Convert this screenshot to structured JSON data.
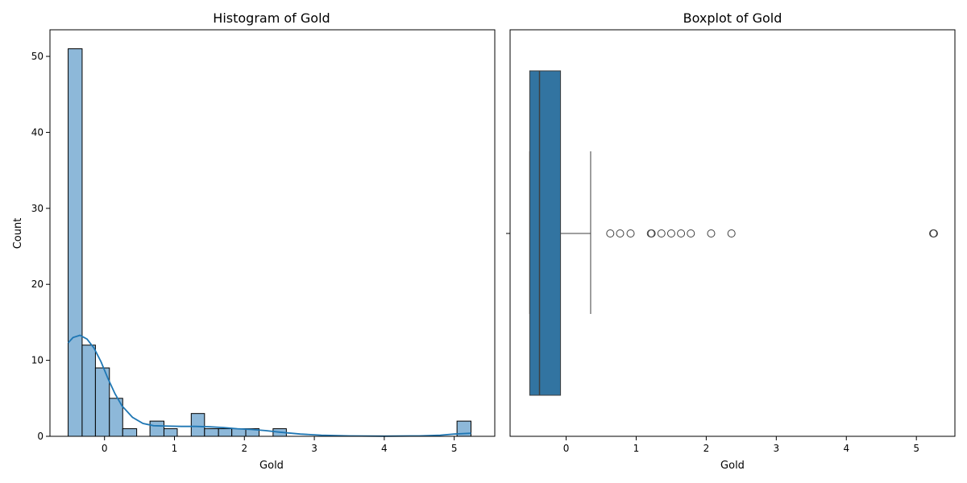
{
  "chart_data": [
    {
      "type": "bar",
      "title": "Histogram of Gold",
      "xlabel": "Gold",
      "ylabel": "Count",
      "xlim": [
        -0.78,
        5.58
      ],
      "ylim": [
        0,
        53.5
      ],
      "xticks": [
        0,
        1,
        2,
        3,
        4,
        5
      ],
      "yticks": [
        0,
        10,
        20,
        30,
        40,
        50
      ],
      "bar_color": "#8db8d9",
      "bar_edge": "#000000",
      "bins": [
        {
          "x0": -0.52,
          "x1": -0.32,
          "count": 51
        },
        {
          "x0": -0.32,
          "x1": -0.13,
          "count": 12
        },
        {
          "x0": -0.13,
          "x1": 0.07,
          "count": 9
        },
        {
          "x0": 0.07,
          "x1": 0.26,
          "count": 5
        },
        {
          "x0": 0.26,
          "x1": 0.46,
          "count": 1
        },
        {
          "x0": 0.46,
          "x1": 0.65,
          "count": 0
        },
        {
          "x0": 0.65,
          "x1": 0.85,
          "count": 2
        },
        {
          "x0": 0.85,
          "x1": 1.04,
          "count": 1
        },
        {
          "x0": 1.04,
          "x1": 1.24,
          "count": 0
        },
        {
          "x0": 1.24,
          "x1": 1.43,
          "count": 3
        },
        {
          "x0": 1.43,
          "x1": 1.63,
          "count": 1
        },
        {
          "x0": 1.63,
          "x1": 1.82,
          "count": 1
        },
        {
          "x0": 1.82,
          "x1": 2.02,
          "count": 1
        },
        {
          "x0": 2.02,
          "x1": 2.21,
          "count": 1
        },
        {
          "x0": 2.21,
          "x1": 2.41,
          "count": 0
        },
        {
          "x0": 2.41,
          "x1": 2.6,
          "count": 1
        },
        {
          "x0": 5.04,
          "x1": 5.24,
          "count": 2
        }
      ],
      "kde": {
        "color": "#1f77b4",
        "x": [
          -0.52,
          -0.45,
          -0.35,
          -0.25,
          -0.15,
          -0.05,
          0.05,
          0.15,
          0.25,
          0.4,
          0.55,
          0.7,
          0.9,
          1.1,
          1.3,
          1.5,
          1.7,
          1.9,
          2.1,
          2.3,
          2.5,
          2.8,
          3.1,
          3.5,
          4.0,
          4.5,
          4.8,
          5.0,
          5.24
        ],
        "y": [
          12.3,
          13.0,
          13.3,
          12.8,
          11.6,
          9.8,
          7.6,
          5.6,
          4.0,
          2.5,
          1.7,
          1.4,
          1.35,
          1.3,
          1.3,
          1.25,
          1.15,
          1.0,
          0.9,
          0.75,
          0.55,
          0.3,
          0.15,
          0.05,
          0.02,
          0.05,
          0.15,
          0.3,
          0.4
        ]
      }
    },
    {
      "type": "box",
      "title": "Boxplot of Gold",
      "xlabel": "Gold",
      "xlim": [
        -0.8,
        5.55
      ],
      "xticks": [
        0,
        1,
        2,
        3,
        4,
        5
      ],
      "box_color": "#3274a1",
      "line_color": "#3f3f3f",
      "min": -0.52,
      "q1": -0.52,
      "median": -0.38,
      "q3": -0.08,
      "whisker_high": 0.35,
      "outliers": [
        0.63,
        0.77,
        0.92,
        1.21,
        1.22,
        1.36,
        1.5,
        1.64,
        1.78,
        2.07,
        2.36,
        5.24,
        5.25
      ]
    }
  ]
}
